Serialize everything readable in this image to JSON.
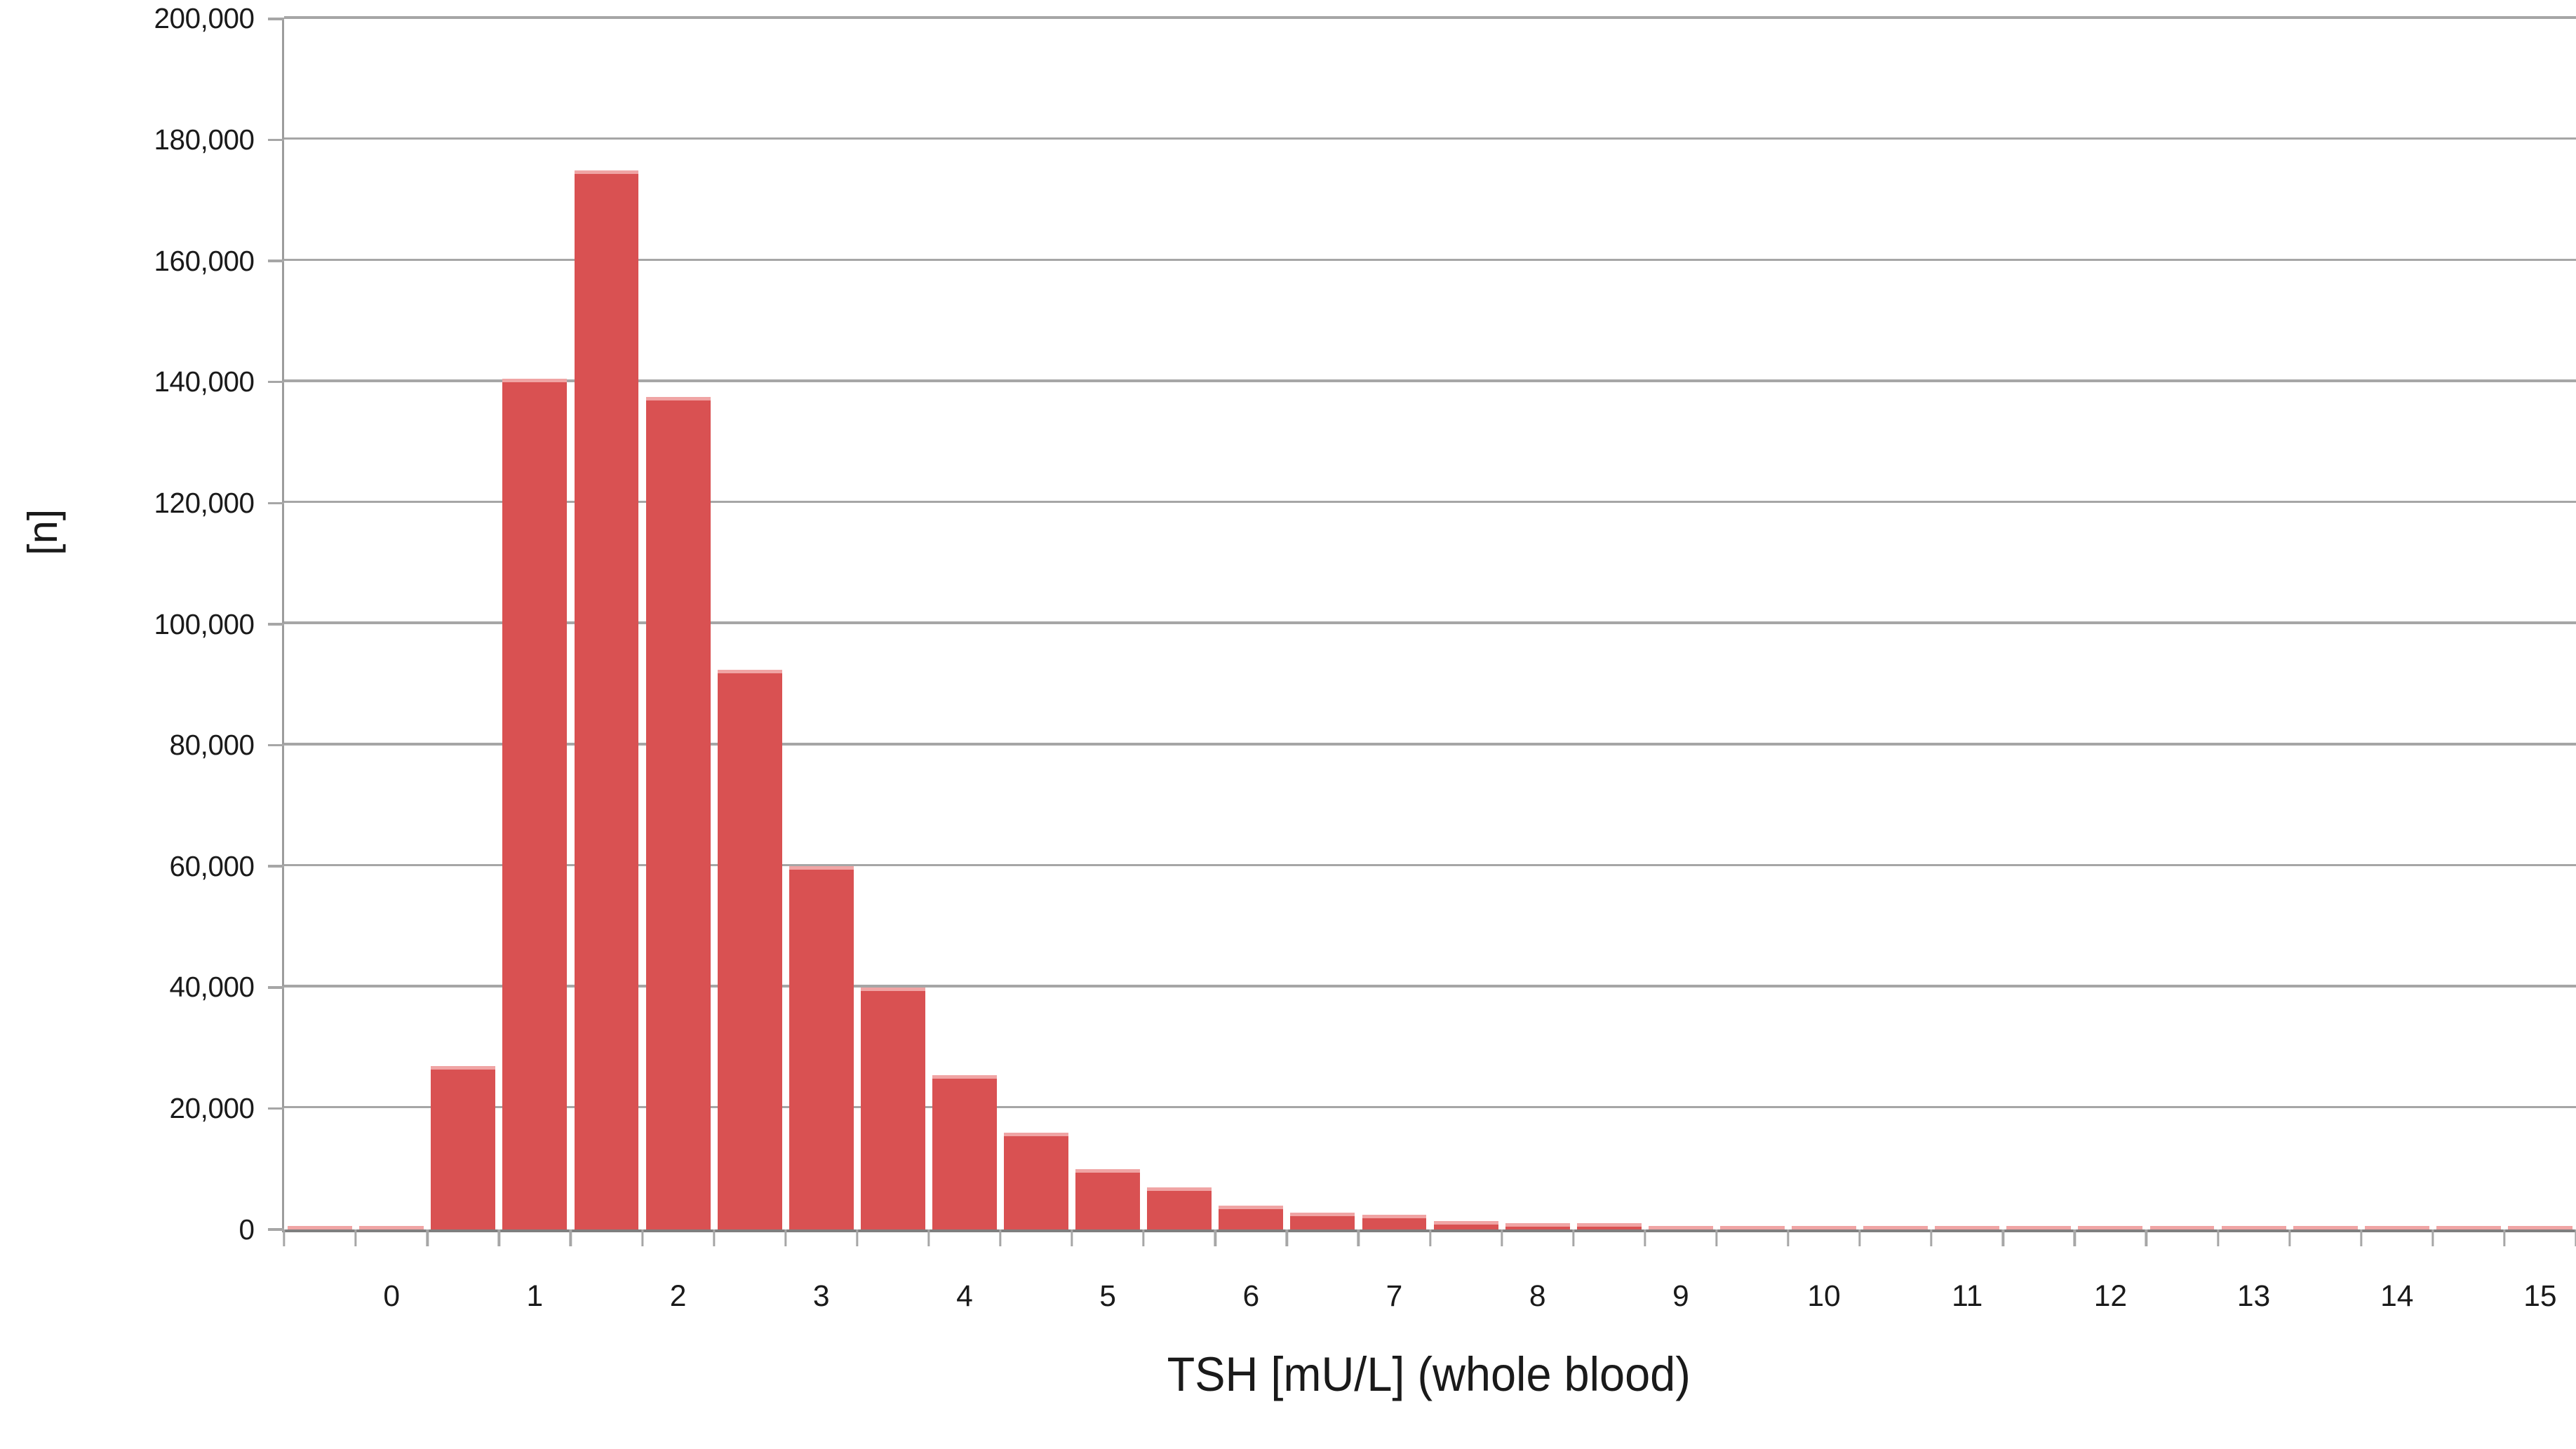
{
  "chart_data": {
    "type": "bar",
    "title": "",
    "xlabel": "TSH [mU/L] (whole blood)",
    "ylabel": "[n]",
    "categories": [
      -0.5,
      0,
      0.5,
      1,
      1.5,
      2,
      2.5,
      3,
      3.5,
      4,
      4.5,
      5,
      5.5,
      6,
      6.5,
      7,
      7.5,
      8,
      8.5,
      9,
      9.5,
      10,
      10.5,
      11,
      11.5,
      12,
      12.5,
      13,
      13.5,
      14,
      14.5,
      15
    ],
    "values": [
      500,
      500,
      27000,
      140500,
      175000,
      137500,
      92500,
      60000,
      40000,
      25500,
      16000,
      10000,
      7000,
      4000,
      2800,
      2400,
      1400,
      1000,
      1050,
      650,
      550,
      500,
      500,
      450,
      450,
      450,
      400,
      400,
      400,
      350,
      350,
      350
    ],
    "bin_width": 0.5,
    "x_tick_labels": [
      "0",
      "1",
      "2",
      "3",
      "4",
      "5",
      "6",
      "7",
      "8",
      "9",
      "10",
      "11",
      "12",
      "13",
      "14",
      "15"
    ],
    "y_tick_labels": [
      "0",
      "20,000",
      "40,000",
      "60,000",
      "80,000",
      "100,000",
      "120,000",
      "140,000",
      "160,000",
      "180,000",
      "200,000"
    ],
    "ylim": [
      0,
      200000
    ],
    "grid": "horizontal",
    "legend": "none",
    "colors": {
      "bar_fill": "#d95152",
      "bar_edge": "#f0a4a4",
      "gridline": "#a6a6a6",
      "axis_line": "#7f7f7f",
      "text": "#1a1a1a",
      "background": "#ffffff"
    }
  }
}
